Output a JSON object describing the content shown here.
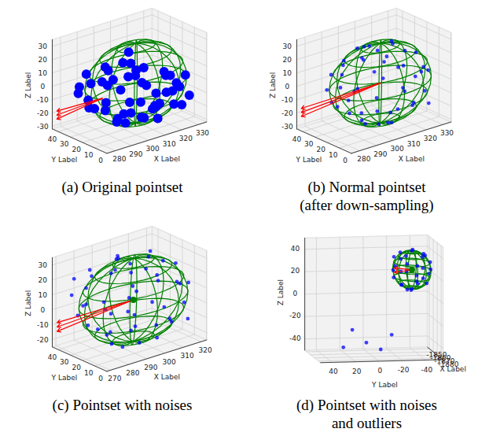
{
  "chart_data": [
    {
      "type": "scatter3d",
      "caption": [
        "(a) Original pointset"
      ],
      "grid": true,
      "xlabel": "X Label",
      "ylabel": "Y Label",
      "zlabel": "Z Label",
      "xlim": [
        275,
        335
      ],
      "ylim": [
        0,
        45
      ],
      "zlim": [
        -32,
        35
      ],
      "xticks": [
        280,
        290,
        300,
        310,
        320,
        330
      ],
      "yticks": [
        0,
        10,
        20,
        30,
        40
      ],
      "zticks": [
        -30,
        -20,
        -10,
        0,
        10,
        20,
        30
      ],
      "color": "#0000ff",
      "points": [
        [
          282,
          25,
          -5
        ],
        [
          284,
          35,
          0
        ],
        [
          285,
          15,
          -10
        ],
        [
          287,
          40,
          -8
        ],
        [
          288,
          28,
          -15
        ],
        [
          290,
          20,
          5
        ],
        [
          291,
          8,
          -12
        ],
        [
          292,
          38,
          -20
        ],
        [
          294,
          30,
          2
        ],
        [
          295,
          12,
          -22
        ],
        [
          296,
          42,
          -5
        ],
        [
          297,
          22,
          -26
        ],
        [
          299,
          5,
          -5
        ],
        [
          300,
          35,
          -18
        ],
        [
          301,
          18,
          8
        ],
        [
          302,
          28,
          -28
        ],
        [
          303,
          10,
          -20
        ],
        [
          305,
          40,
          2
        ],
        [
          306,
          2,
          -10
        ],
        [
          307,
          24,
          -24
        ],
        [
          308,
          32,
          10
        ],
        [
          309,
          14,
          0
        ],
        [
          310,
          6,
          -22
        ],
        [
          311,
          38,
          -14
        ],
        [
          312,
          20,
          -28
        ],
        [
          313,
          28,
          4
        ],
        [
          314,
          10,
          -14
        ],
        [
          315,
          36,
          -24
        ],
        [
          316,
          2,
          -2
        ],
        [
          317,
          18,
          -20
        ],
        [
          318,
          30,
          -8
        ],
        [
          319,
          8,
          6
        ],
        [
          320,
          24,
          -26
        ],
        [
          321,
          14,
          -10
        ],
        [
          322,
          34,
          0
        ],
        [
          323,
          4,
          -16
        ],
        [
          324,
          20,
          2
        ],
        [
          325,
          28,
          -18
        ],
        [
          326,
          10,
          -6
        ],
        [
          327,
          16,
          -22
        ],
        [
          328,
          24,
          -4
        ],
        [
          329,
          6,
          -12
        ],
        [
          330,
          18,
          -8
        ],
        [
          331,
          12,
          0
        ],
        [
          286,
          32,
          10
        ],
        [
          289,
          14,
          12
        ],
        [
          293,
          26,
          15
        ],
        [
          298,
          8,
          14
        ],
        [
          304,
          20,
          16
        ],
        [
          310,
          30,
          18
        ]
      ],
      "ellipsoid": {
        "center": [
          307,
          20,
          0
        ],
        "radii": [
          27,
          20,
          30
        ],
        "color": "#008000"
      },
      "arrows": {
        "color": "#ff0000",
        "segments": [
          [
            [
              300,
              38,
              -16
            ],
            [
              277,
              44,
              -22
            ]
          ],
          [
            [
              300,
              38,
              -16
            ],
            [
              277,
              44,
              -19
            ]
          ],
          [
            [
              300,
              38,
              -16
            ],
            [
              277,
              44,
              -25
            ]
          ]
        ]
      }
    },
    {
      "type": "scatter3d",
      "caption": [
        "(b) Normal pointset",
        "(after down-sampling)"
      ],
      "grid": true,
      "xlabel": "X Label",
      "ylabel": "Y Label",
      "zlabel": "Z Label",
      "xlim": [
        275,
        335
      ],
      "ylim": [
        0,
        45
      ],
      "zlim": [
        -32,
        35
      ],
      "xticks": [
        280,
        290,
        300,
        310,
        320,
        330
      ],
      "yticks": [
        0,
        10,
        20,
        30,
        40
      ],
      "zticks": [
        -30,
        -20,
        -10,
        0,
        10,
        20,
        30
      ],
      "color": "#0000ff",
      "points": [
        [
          285,
          30,
          -10
        ],
        [
          288,
          38,
          -5
        ],
        [
          290,
          12,
          -18
        ],
        [
          292,
          40,
          4
        ],
        [
          295,
          5,
          -20
        ],
        [
          296,
          35,
          15
        ],
        [
          298,
          20,
          -27
        ],
        [
          300,
          2,
          -12
        ],
        [
          300,
          42,
          0
        ],
        [
          302,
          10,
          22
        ],
        [
          303,
          30,
          -25
        ],
        [
          304,
          25,
          27
        ],
        [
          306,
          0,
          5
        ],
        [
          306,
          40,
          -14
        ],
        [
          308,
          15,
          -28
        ],
        [
          309,
          36,
          20
        ],
        [
          310,
          5,
          18
        ],
        [
          311,
          28,
          -26
        ],
        [
          312,
          42,
          8
        ],
        [
          313,
          18,
          28
        ],
        [
          314,
          2,
          -10
        ],
        [
          315,
          34,
          -20
        ],
        [
          316,
          12,
          24
        ],
        [
          318,
          40,
          -4
        ],
        [
          319,
          22,
          -25
        ],
        [
          320,
          4,
          10
        ],
        [
          321,
          30,
          22
        ],
        [
          322,
          14,
          -20
        ],
        [
          324,
          38,
          6
        ],
        [
          325,
          8,
          -8
        ],
        [
          326,
          26,
          -16
        ],
        [
          327,
          18,
          16
        ],
        [
          328,
          34,
          -2
        ],
        [
          330,
          12,
          4
        ],
        [
          331,
          24,
          -6
        ],
        [
          283,
          20,
          6
        ],
        [
          286,
          10,
          8
        ],
        [
          289,
          26,
          18
        ],
        [
          294,
          16,
          24
        ],
        [
          297,
          4,
          14
        ],
        [
          299,
          28,
          26
        ],
        [
          301,
          38,
          -18
        ],
        [
          305,
          8,
          -24
        ],
        [
          290,
          32,
          -16
        ],
        [
          287,
          18,
          -14
        ],
        [
          333,
          20,
          2
        ],
        [
          323,
          2,
          -14
        ],
        [
          317,
          36,
          14
        ]
      ],
      "ellipsoid": {
        "center": [
          307,
          20,
          0
        ],
        "radii": [
          27,
          20,
          30
        ],
        "color": "#008000"
      },
      "arrows": {
        "color": "#ff0000",
        "segments": [
          [
            [
              307,
              20,
              0
            ],
            [
              277,
              44,
              -20
            ]
          ],
          [
            [
              307,
              20,
              0
            ],
            [
              277,
              44,
              -17
            ]
          ],
          [
            [
              307,
              20,
              0
            ],
            [
              277,
              44,
              -23
            ]
          ]
        ]
      }
    },
    {
      "type": "scatter3d",
      "caption": [
        "(c) Pointset with noises"
      ],
      "grid": true,
      "xlabel": "X Label",
      "ylabel": "Y Label",
      "zlabel": "Z Label",
      "xlim": [
        268,
        323
      ],
      "ylim": [
        0,
        45
      ],
      "zlim": [
        -25,
        35
      ],
      "xticks": [
        270,
        280,
        290,
        300,
        310,
        320
      ],
      "yticks": [
        0,
        10,
        20,
        30,
        40
      ],
      "zticks": [
        -20,
        -10,
        0,
        10,
        20,
        30
      ],
      "color": "#0000ff",
      "points": [
        [
          272,
          30,
          0
        ],
        [
          274,
          38,
          10
        ],
        [
          276,
          12,
          -8
        ],
        [
          278,
          42,
          18
        ],
        [
          280,
          5,
          -15
        ],
        [
          282,
          35,
          25
        ],
        [
          284,
          20,
          -20
        ],
        [
          285,
          2,
          -2
        ],
        [
          286,
          44,
          8
        ],
        [
          288,
          10,
          30
        ],
        [
          290,
          30,
          -18
        ],
        [
          291,
          25,
          33
        ],
        [
          293,
          0,
          12
        ],
        [
          294,
          40,
          -8
        ],
        [
          296,
          15,
          -22
        ],
        [
          298,
          36,
          28
        ],
        [
          299,
          5,
          26
        ],
        [
          300,
          28,
          -20
        ],
        [
          302,
          44,
          14
        ],
        [
          303,
          18,
          32
        ],
        [
          304,
          2,
          -4
        ],
        [
          306,
          34,
          -14
        ],
        [
          307,
          12,
          30
        ],
        [
          309,
          40,
          2
        ],
        [
          310,
          22,
          -18
        ],
        [
          311,
          4,
          16
        ],
        [
          312,
          30,
          28
        ],
        [
          313,
          14,
          -14
        ],
        [
          315,
          38,
          12
        ],
        [
          316,
          8,
          0
        ],
        [
          317,
          26,
          -10
        ],
        [
          318,
          18,
          22
        ],
        [
          319,
          34,
          4
        ],
        [
          321,
          12,
          10
        ],
        [
          270,
          20,
          12
        ],
        [
          273,
          10,
          16
        ],
        [
          277,
          26,
          26
        ],
        [
          281,
          16,
          30
        ],
        [
          287,
          4,
          20
        ],
        [
          292,
          28,
          31
        ],
        [
          297,
          40,
          -12
        ],
        [
          301,
          8,
          -18
        ],
        [
          279,
          32,
          -10
        ],
        [
          275,
          18,
          -6
        ],
        [
          320,
          20,
          8
        ],
        [
          314,
          2,
          -8
        ],
        [
          305,
          36,
          20
        ],
        [
          283,
          42,
          -2
        ],
        [
          295,
          22,
          6
        ],
        [
          289,
          14,
          2
        ]
      ],
      "ellipsoid": {
        "center": [
          296,
          20,
          5
        ],
        "radii": [
          27,
          20,
          28
        ],
        "color": "#008000"
      },
      "centroid": {
        "point": [
          296,
          20,
          5
        ],
        "color": "#008000"
      },
      "arrows": {
        "color": "#ff0000",
        "segments": [
          [
            [
              296,
              20,
              5
            ],
            [
              270,
              44,
              -12
            ]
          ],
          [
            [
              296,
              20,
              5
            ],
            [
              270,
              44,
              -9
            ]
          ],
          [
            [
              296,
              20,
              5
            ],
            [
              270,
              44,
              -15
            ]
          ]
        ]
      }
    },
    {
      "type": "scatter3d",
      "caption": [
        "(d) Pointset with noises",
        "and outliers"
      ],
      "grid": true,
      "xlabel": "X Label",
      "ylabel": "Y Label",
      "zlabel": "Z Label",
      "xlim": [
        -1885,
        -1845
      ],
      "ylim": [
        -55,
        50
      ],
      "zlim": [
        -50,
        50
      ],
      "xticks": [
        -1880,
        -1870,
        -1860,
        -1850
      ],
      "yticks": [
        -40,
        -20,
        0,
        20,
        40
      ],
      "zticks": [
        -40,
        -20,
        0,
        20,
        40
      ],
      "color": "#0000ff",
      "points": [
        [
          -1865,
          -19,
          25
        ],
        [
          -1865,
          -51,
          25
        ],
        [
          -1865,
          -35,
          42
        ],
        [
          -1865,
          -35,
          8
        ],
        [
          -1858,
          -22,
          35
        ],
        [
          -1872,
          -24,
          14
        ],
        [
          -1860,
          -48,
          36
        ],
        [
          -1870,
          -46,
          14
        ],
        [
          -1852,
          -30,
          20
        ],
        [
          -1878,
          -40,
          30
        ],
        [
          -1862,
          -26,
          40
        ],
        [
          -1868,
          -44,
          40
        ],
        [
          -1856,
          -42,
          12
        ],
        [
          -1874,
          -28,
          10
        ],
        [
          -1850,
          -36,
          26
        ],
        [
          -1880,
          -34,
          24
        ],
        [
          -1863,
          -20,
          18
        ],
        [
          -1867,
          -50,
          32
        ],
        [
          -1858,
          -38,
          41
        ],
        [
          -1872,
          -32,
          9
        ],
        [
          -1855,
          -24,
          26
        ],
        [
          -1875,
          -46,
          24
        ],
        [
          -1861,
          -46,
          16
        ],
        [
          -1869,
          -24,
          36
        ],
        [
          -1853,
          -34,
          34
        ],
        [
          -1877,
          -36,
          16
        ],
        [
          -1866,
          -30,
          24
        ],
        [
          -1864,
          -40,
          28
        ],
        [
          -1859,
          -28,
          10
        ],
        [
          -1871,
          -42,
          38
        ],
        [
          -1862,
          15,
          -28
        ],
        [
          -1868,
          5,
          -38
        ],
        [
          -1866,
          -8,
          -45
        ],
        [
          -1860,
          22,
          -44
        ],
        [
          -1870,
          -16,
          -31
        ]
      ],
      "ellipsoid": {
        "center": [
          -1865,
          -35,
          25
        ],
        "radii": [
          15,
          16,
          17
        ],
        "color": "#008000"
      },
      "centroid": {
        "point": [
          -1865,
          -35,
          25
        ],
        "color": "#008000"
      },
      "arrows": {
        "color": "#ff0000",
        "segments": [
          [
            [
              -1865,
              -35,
              25
            ],
            [
              -1865,
              -20,
              23
            ]
          ],
          [
            [
              -1865,
              -35,
              25
            ],
            [
              -1865,
              -20,
              27
            ]
          ]
        ]
      }
    }
  ]
}
